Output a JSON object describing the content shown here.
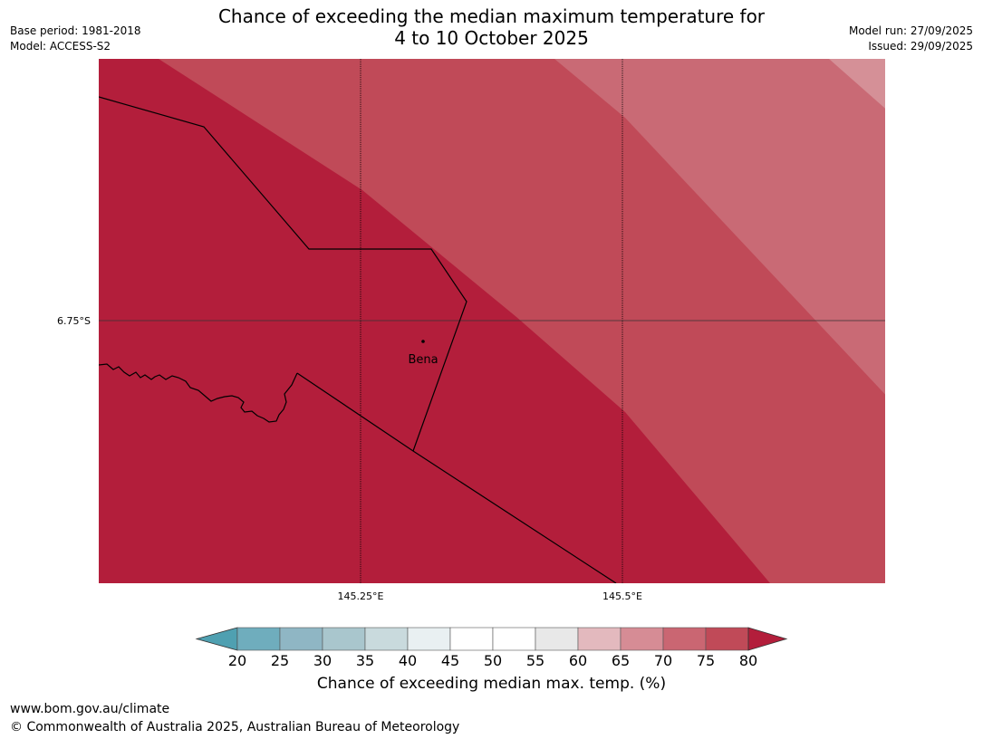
{
  "title_line1": "Chance of exceeding the median maximum temperature for",
  "title_line2": "4 to 10 October 2025",
  "meta_left": {
    "base_period": "Base period: 1981-2018",
    "model": "Model: ACCESS-S2"
  },
  "meta_right": {
    "model_run": "Model run: 27/09/2025",
    "issued": "Issued: 29/09/2025"
  },
  "map": {
    "lat_label": "6.75°S",
    "lon_labels": [
      "145.25°E",
      "145.5°E"
    ],
    "place": "Bena",
    "colors": {
      "band80": "#b31e3b",
      "band75": "#c04a58",
      "band70": "#c96a75",
      "band65": "#d59097"
    }
  },
  "colorbar": {
    "ticks": [
      "20",
      "25",
      "30",
      "35",
      "40",
      "45",
      "50",
      "55",
      "60",
      "65",
      "70",
      "75",
      "80"
    ],
    "colors": [
      "#6fadbd",
      "#8fb6c4",
      "#a9c6cd",
      "#c9dadd",
      "#e9f0f2",
      "#ffffff",
      "#ffffff",
      "#e8e8e8",
      "#e3b9be",
      "#d68c95",
      "#ca6672",
      "#c04a58"
    ],
    "low_color": "#4fa0b1",
    "high_color": "#b31e3b",
    "label": "Chance of exceeding median max. temp. (%)"
  },
  "footer": {
    "url": "www.bom.gov.au/climate",
    "copyright": "© Commonwealth of Australia 2025, Australian Bureau of Meteorology"
  }
}
